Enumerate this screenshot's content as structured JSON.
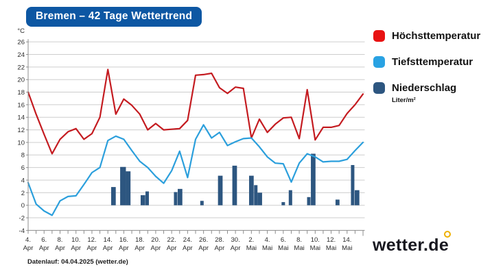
{
  "title": "Bremen – 42 Tage Wettertrend",
  "legend": [
    {
      "label": "Höchsttemperatur",
      "color": "#e81212"
    },
    {
      "label": "Tiefsttemperatur",
      "color": "#29a2e3"
    },
    {
      "label": "Niederschlag",
      "color": "#2d5680",
      "sublabel": "Liter/m²"
    }
  ],
  "footer": {
    "datenlauf": "Datenlauf: 04.04.2025 (wetter.de)"
  },
  "logo": {
    "text": "wetter.de",
    "accent_color": "#eeb000"
  },
  "chart_data": {
    "type": "line+bar",
    "title": "Bremen – 42 Tage Wettertrend",
    "ylabel_unit": "°C",
    "ylim": [
      -4,
      26
    ],
    "ytick_step": 2,
    "grid": "horizontal-only",
    "x_range_days": [
      0,
      42
    ],
    "x_start_date": "4. Apr",
    "x_end_date": "16. Mai",
    "xticks": [
      {
        "d": 0,
        "t1": "4.",
        "t2": "Apr"
      },
      {
        "d": 2,
        "t1": "6.",
        "t2": "Apr"
      },
      {
        "d": 4,
        "t1": "8.",
        "t2": "Apr"
      },
      {
        "d": 6,
        "t1": "10.",
        "t2": "Apr"
      },
      {
        "d": 8,
        "t1": "12.",
        "t2": "Apr"
      },
      {
        "d": 10,
        "t1": "14.",
        "t2": "Apr"
      },
      {
        "d": 12,
        "t1": "16.",
        "t2": "Apr"
      },
      {
        "d": 14,
        "t1": "18.",
        "t2": "Apr"
      },
      {
        "d": 16,
        "t1": "20.",
        "t2": "Apr"
      },
      {
        "d": 18,
        "t1": "22.",
        "t2": "Apr"
      },
      {
        "d": 20,
        "t1": "24.",
        "t2": "Apr"
      },
      {
        "d": 22,
        "t1": "26.",
        "t2": "Apr"
      },
      {
        "d": 24,
        "t1": "28.",
        "t2": "Apr"
      },
      {
        "d": 26,
        "t1": "30.",
        "t2": "Apr"
      },
      {
        "d": 28,
        "t1": "2.",
        "t2": "Mai"
      },
      {
        "d": 30,
        "t1": "4.",
        "t2": "Mai"
      },
      {
        "d": 32,
        "t1": "6.",
        "t2": "Mai"
      },
      {
        "d": 34,
        "t1": "8.",
        "t2": "Mai"
      },
      {
        "d": 36,
        "t1": "10.",
        "t2": "Mai"
      },
      {
        "d": 38,
        "t1": "12.",
        "t2": "Mai"
      },
      {
        "d": 40,
        "t1": "14.",
        "t2": "Mai"
      }
    ],
    "series": [
      {
        "name": "Höchsttemperatur",
        "type": "line",
        "color": "#c41b20",
        "values": [
          18.0,
          14.5,
          11.3,
          8.2,
          10.5,
          11.7,
          12.2,
          10.5,
          11.4,
          14.0,
          21.6,
          14.5,
          16.9,
          15.9,
          14.5,
          12.0,
          13.0,
          12.0,
          12.1,
          12.2,
          13.5,
          20.7,
          20.8,
          21.0,
          18.7,
          17.8,
          18.8,
          18.6,
          10.7,
          13.7,
          11.6,
          12.9,
          13.9,
          14.0,
          10.6,
          18.4,
          10.4,
          12.4,
          12.4,
          12.7,
          14.6,
          16.0,
          17.7
        ]
      },
      {
        "name": "Tiefsttemperatur",
        "type": "line",
        "color": "#2b9fdc",
        "values": [
          3.6,
          0.2,
          -0.9,
          -1.6,
          0.7,
          1.4,
          1.5,
          3.3,
          5.2,
          6.0,
          10.3,
          11.0,
          10.5,
          8.7,
          7.0,
          6.0,
          4.6,
          3.5,
          5.5,
          8.6,
          4.4,
          10.5,
          12.8,
          10.7,
          11.6,
          9.5,
          10.1,
          10.6,
          10.7,
          9.3,
          7.7,
          6.7,
          6.6,
          3.7,
          6.7,
          8.2,
          7.7,
          6.9,
          7.0,
          7.0,
          7.3,
          8.7,
          10.0
        ]
      },
      {
        "name": "Niederschlag",
        "type": "bar",
        "unit": "Liter/m²",
        "color": "#2d5680",
        "bars": [
          {
            "d": 10.7,
            "w": 0.58,
            "v": 2.9
          },
          {
            "d": 11.9,
            "w": 0.72,
            "v": 6.1
          },
          {
            "d": 12.55,
            "w": 0.58,
            "v": 5.4
          },
          {
            "d": 14.4,
            "w": 0.58,
            "v": 1.6
          },
          {
            "d": 14.93,
            "w": 0.43,
            "v": 2.2
          },
          {
            "d": 18.5,
            "w": 0.43,
            "v": 2.1
          },
          {
            "d": 19.05,
            "w": 0.58,
            "v": 2.6
          },
          {
            "d": 21.8,
            "w": 0.43,
            "v": 0.7
          },
          {
            "d": 24.1,
            "w": 0.58,
            "v": 4.7
          },
          {
            "d": 25.9,
            "w": 0.58,
            "v": 6.3
          },
          {
            "d": 28.0,
            "w": 0.58,
            "v": 4.7
          },
          {
            "d": 28.55,
            "w": 0.43,
            "v": 3.2
          },
          {
            "d": 29.05,
            "w": 0.58,
            "v": 2.0
          },
          {
            "d": 32.0,
            "w": 0.43,
            "v": 0.5
          },
          {
            "d": 32.9,
            "w": 0.43,
            "v": 2.4
          },
          {
            "d": 35.2,
            "w": 0.43,
            "v": 1.3
          },
          {
            "d": 35.75,
            "w": 0.58,
            "v": 8.2
          },
          {
            "d": 38.8,
            "w": 0.5,
            "v": 0.9
          },
          {
            "d": 40.7,
            "w": 0.43,
            "v": 6.4
          },
          {
            "d": 41.25,
            "w": 0.58,
            "v": 2.4
          }
        ]
      }
    ],
    "colors": {
      "grid": "#cdcdcd",
      "axis": "#8c8c8c",
      "tick_text": "#2b2b2b"
    }
  }
}
